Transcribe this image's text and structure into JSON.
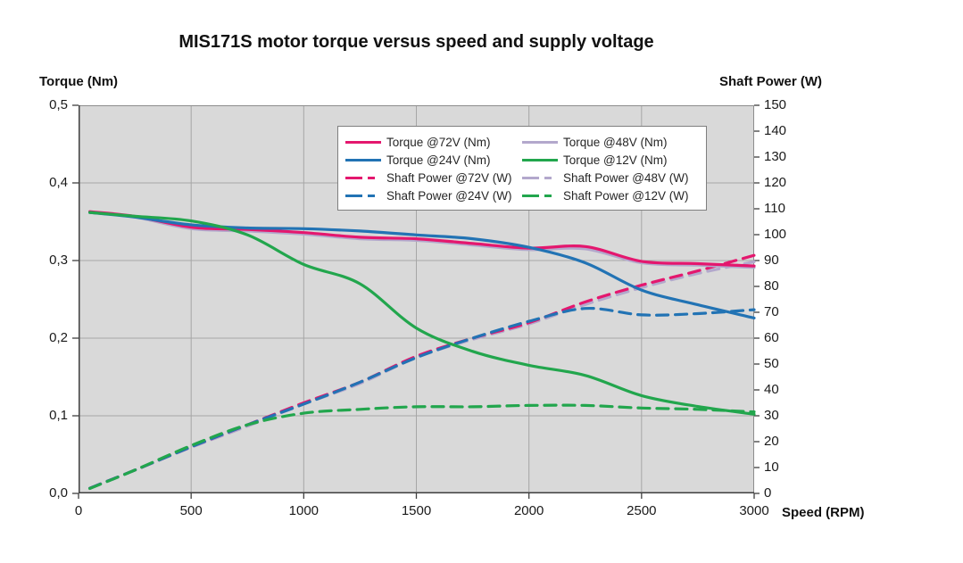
{
  "title": "MIS171S motor torque versus speed and supply voltage",
  "axes": {
    "left_title": "Torque (Nm)",
    "right_title": "Shaft Power (W)",
    "x_title": "Speed (RPM)",
    "left_tick_labels": [
      "0,0",
      "0,1",
      "0,2",
      "0,3",
      "0,4",
      "0,5"
    ],
    "right_tick_labels": [
      "0",
      "10",
      "20",
      "30",
      "40",
      "50",
      "60",
      "70",
      "80",
      "90",
      "100",
      "110",
      "120",
      "130",
      "140",
      "150"
    ],
    "x_tick_labels": [
      "0",
      "500",
      "1000",
      "1500",
      "2000",
      "2500",
      "3000"
    ]
  },
  "legend": {
    "items": [
      {
        "label": "Torque @72V (Nm)",
        "color": "#e4176e",
        "dashed": false
      },
      {
        "label": "Torque @48V (Nm)",
        "color": "#b3a8cc",
        "dashed": false
      },
      {
        "label": "Torque @24V (Nm)",
        "color": "#2273b4",
        "dashed": false
      },
      {
        "label": "Torque @12V (Nm)",
        "color": "#22a64d",
        "dashed": false
      },
      {
        "label": "Shaft Power @72V (W)",
        "color": "#e4176e",
        "dashed": true
      },
      {
        "label": "Shaft Power @48V (W)",
        "color": "#b3a8cc",
        "dashed": true
      },
      {
        "label": "Shaft Power @24V (W)",
        "color": "#2273b4",
        "dashed": true
      },
      {
        "label": "Shaft Power @12V (W)",
        "color": "#22a64d",
        "dashed": true
      }
    ]
  },
  "colors": {
    "v72": "#e4176e",
    "v48": "#b3a8cc",
    "v24": "#2273b4",
    "v12": "#22a64d",
    "plot_bg": "#d9d9d9",
    "grid": "#a6a6a6",
    "axis": "#3f3f3f",
    "border": "#8c8c8c"
  },
  "chart_data": {
    "type": "line",
    "title": "MIS171S motor torque versus speed and supply voltage",
    "xlabel": "Speed (RPM)",
    "x_range": [
      0,
      3000
    ],
    "x_grid_step": 500,
    "left_axis": {
      "label": "Torque (Nm)",
      "range": [
        0,
        0.5
      ],
      "tick_step": 0.1
    },
    "right_axis": {
      "label": "Shaft Power (W)",
      "range": [
        0,
        150
      ],
      "tick_step": 10
    },
    "grid": "on",
    "legend_position": "top-center-inside",
    "x": [
      50,
      250,
      500,
      750,
      1000,
      1250,
      1500,
      1750,
      2000,
      2250,
      2500,
      2750,
      3000
    ],
    "series": [
      {
        "name": "Torque @72V (Nm)",
        "axis": "left",
        "style": "solid",
        "color": "#e4176e",
        "values": [
          0.363,
          0.357,
          0.343,
          0.34,
          0.336,
          0.33,
          0.328,
          0.322,
          0.316,
          0.318,
          0.299,
          0.296,
          0.293
        ]
      },
      {
        "name": "Torque @48V (Nm)",
        "axis": "left",
        "style": "solid",
        "color": "#b3a8cc",
        "values": [
          0.362,
          0.356,
          0.341,
          0.338,
          0.334,
          0.328,
          0.326,
          0.32,
          0.314,
          0.315,
          0.297,
          0.294,
          0.291
        ]
      },
      {
        "name": "Torque @24V (Nm)",
        "axis": "left",
        "style": "solid",
        "color": "#2273b4",
        "values": [
          0.362,
          0.356,
          0.346,
          0.342,
          0.341,
          0.338,
          0.333,
          0.328,
          0.317,
          0.297,
          0.262,
          0.243,
          0.226
        ]
      },
      {
        "name": "Torque @12V (Nm)",
        "axis": "left",
        "style": "solid",
        "color": "#22a64d",
        "values": [
          0.362,
          0.357,
          0.351,
          0.333,
          0.295,
          0.27,
          0.213,
          0.183,
          0.165,
          0.152,
          0.126,
          0.112,
          0.102
        ]
      },
      {
        "name": "Shaft Power @72V (W)",
        "axis": "right",
        "style": "dashed",
        "color": "#e4176e",
        "values": [
          2,
          9,
          18,
          26.5,
          35,
          43,
          53,
          60,
          66,
          74,
          80.5,
          86,
          92
        ]
      },
      {
        "name": "Shaft Power @48V (W)",
        "axis": "right",
        "style": "dashed",
        "color": "#b3a8cc",
        "values": [
          2,
          9,
          17.8,
          26,
          34.5,
          42.5,
          52.5,
          59.5,
          65.5,
          73,
          79.5,
          85,
          89.5
        ]
      },
      {
        "name": "Shaft Power @24V (W)",
        "axis": "right",
        "style": "dashed",
        "color": "#2273b4",
        "values": [
          2,
          9,
          18,
          26.5,
          34.5,
          43,
          52.5,
          60,
          66.5,
          71.5,
          69,
          69.5,
          71
        ]
      },
      {
        "name": "Shaft Power @12V (W)",
        "axis": "right",
        "style": "dashed",
        "color": "#22a64d",
        "values": [
          1.9,
          9,
          18.5,
          26.5,
          31,
          32.5,
          33.5,
          33.5,
          34,
          34,
          33,
          32.5,
          31.5
        ]
      }
    ],
    "draw_order": [
      5,
      4,
      6,
      1,
      0,
      2,
      7,
      3
    ]
  }
}
